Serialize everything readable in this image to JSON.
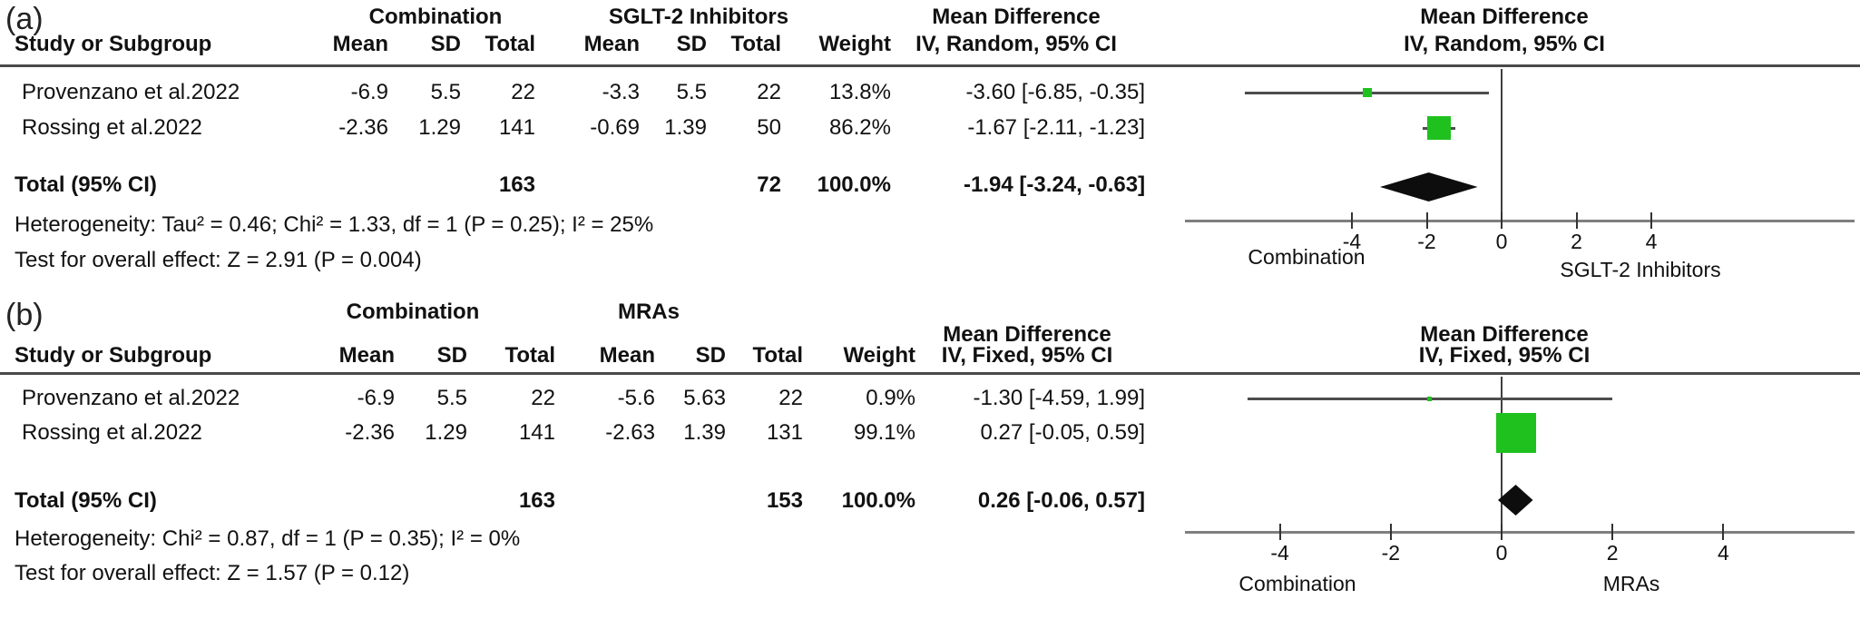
{
  "figure": {
    "panel_a_label": "(a)",
    "panel_b_label": "(b)"
  },
  "chart_data": [
    {
      "type": "forest",
      "panel": "(a)",
      "headers": {
        "group1": "Combination",
        "group2": "SGLT-2 Inhibitors",
        "effect": "Mean Difference",
        "model": "IV, Random, 95% CI",
        "study": "Study or Subgroup",
        "mean": "Mean",
        "sd": "SD",
        "total": "Total",
        "weight": "Weight"
      },
      "rows": [
        {
          "study": "Provenzano et al.2022",
          "g1_mean": "-6.9",
          "g1_sd": "5.5",
          "g1_total": "22",
          "g2_mean": "-3.3",
          "g2_sd": "5.5",
          "g2_total": "22",
          "weight": "13.8%",
          "md_ci": "-3.60 [-6.85, -0.35]",
          "est": -3.6,
          "lo": -6.85,
          "hi": -0.35,
          "weight_pct": 13.8
        },
        {
          "study": "Rossing et al.2022",
          "g1_mean": "-2.36",
          "g1_sd": "1.29",
          "g1_total": "141",
          "g2_mean": "-0.69",
          "g2_sd": "1.39",
          "g2_total": "50",
          "weight": "86.2%",
          "md_ci": "-1.67 [-2.11, -1.23]",
          "est": -1.67,
          "lo": -2.11,
          "hi": -1.23,
          "weight_pct": 86.2
        }
      ],
      "total": {
        "label": "Total (95% CI)",
        "g1_total": "163",
        "g2_total": "72",
        "weight": "100.0%",
        "md_ci": "-1.94 [-3.24, -0.63]",
        "est": -1.94,
        "lo": -3.24,
        "hi": -0.63
      },
      "footers": {
        "heterogeneity": "Heterogeneity: Tau² = 0.46; Chi² = 1.33, df = 1 (P = 0.25); I² = 25%",
        "overall": "Test for overall effect: Z = 2.91 (P = 0.004)"
      },
      "axis": {
        "ticks": [
          "-4",
          "-2",
          "0",
          "2",
          "4"
        ],
        "tick_values": [
          -4,
          -2,
          0,
          2,
          4
        ],
        "left_label": "Combination",
        "right_label": "SGLT-2 Inhibitors",
        "xlim": [
          -8.4,
          9.4
        ]
      },
      "marker_color": "#1fc11f",
      "diamond_color": "#0d0d0d"
    },
    {
      "type": "forest",
      "panel": "(b)",
      "headers": {
        "group1": "Combination",
        "group2": "MRAs",
        "effect": "Mean Difference",
        "model": "IV, Fixed, 95% CI",
        "study": "Study or Subgroup",
        "mean": "Mean",
        "sd": "SD",
        "total": "Total",
        "weight": "Weight"
      },
      "rows": [
        {
          "study": "Provenzano et al.2022",
          "g1_mean": "-6.9",
          "g1_sd": "5.5",
          "g1_total": "22",
          "g2_mean": "-5.6",
          "g2_sd": "5.63",
          "g2_total": "22",
          "weight": "0.9%",
          "md_ci": "-1.30 [-4.59, 1.99]",
          "est": -1.3,
          "lo": -4.59,
          "hi": 1.99,
          "weight_pct": 0.9
        },
        {
          "study": "Rossing et al.2022",
          "g1_mean": "-2.36",
          "g1_sd": "1.29",
          "g1_total": "141",
          "g2_mean": "-2.63",
          "g2_sd": "1.39",
          "g2_total": "131",
          "weight": "99.1%",
          "md_ci": "0.27 [-0.05, 0.59]",
          "est": 0.27,
          "lo": -0.05,
          "hi": 0.59,
          "weight_pct": 99.1
        }
      ],
      "total": {
        "label": "Total (95% CI)",
        "g1_total": "163",
        "g2_total": "153",
        "weight": "100.0%",
        "md_ci": "0.26 [-0.06, 0.57]",
        "est": 0.26,
        "lo": -0.06,
        "hi": 0.57
      },
      "footers": {
        "heterogeneity": "Heterogeneity: Chi² = 0.87, df = 1 (P = 0.35); I² = 0%",
        "overall": "Test for overall effect: Z = 1.57 (P = 0.12)"
      },
      "axis": {
        "ticks": [
          "-4",
          "-2",
          "0",
          "2",
          "4"
        ],
        "tick_values": [
          -4,
          -2,
          0,
          2,
          4
        ],
        "left_label": "Combination",
        "right_label": "MRAs",
        "xlim": [
          -5.7,
          6.4
        ]
      },
      "marker_color": "#1fc11f",
      "diamond_color": "#0d0d0d"
    }
  ]
}
